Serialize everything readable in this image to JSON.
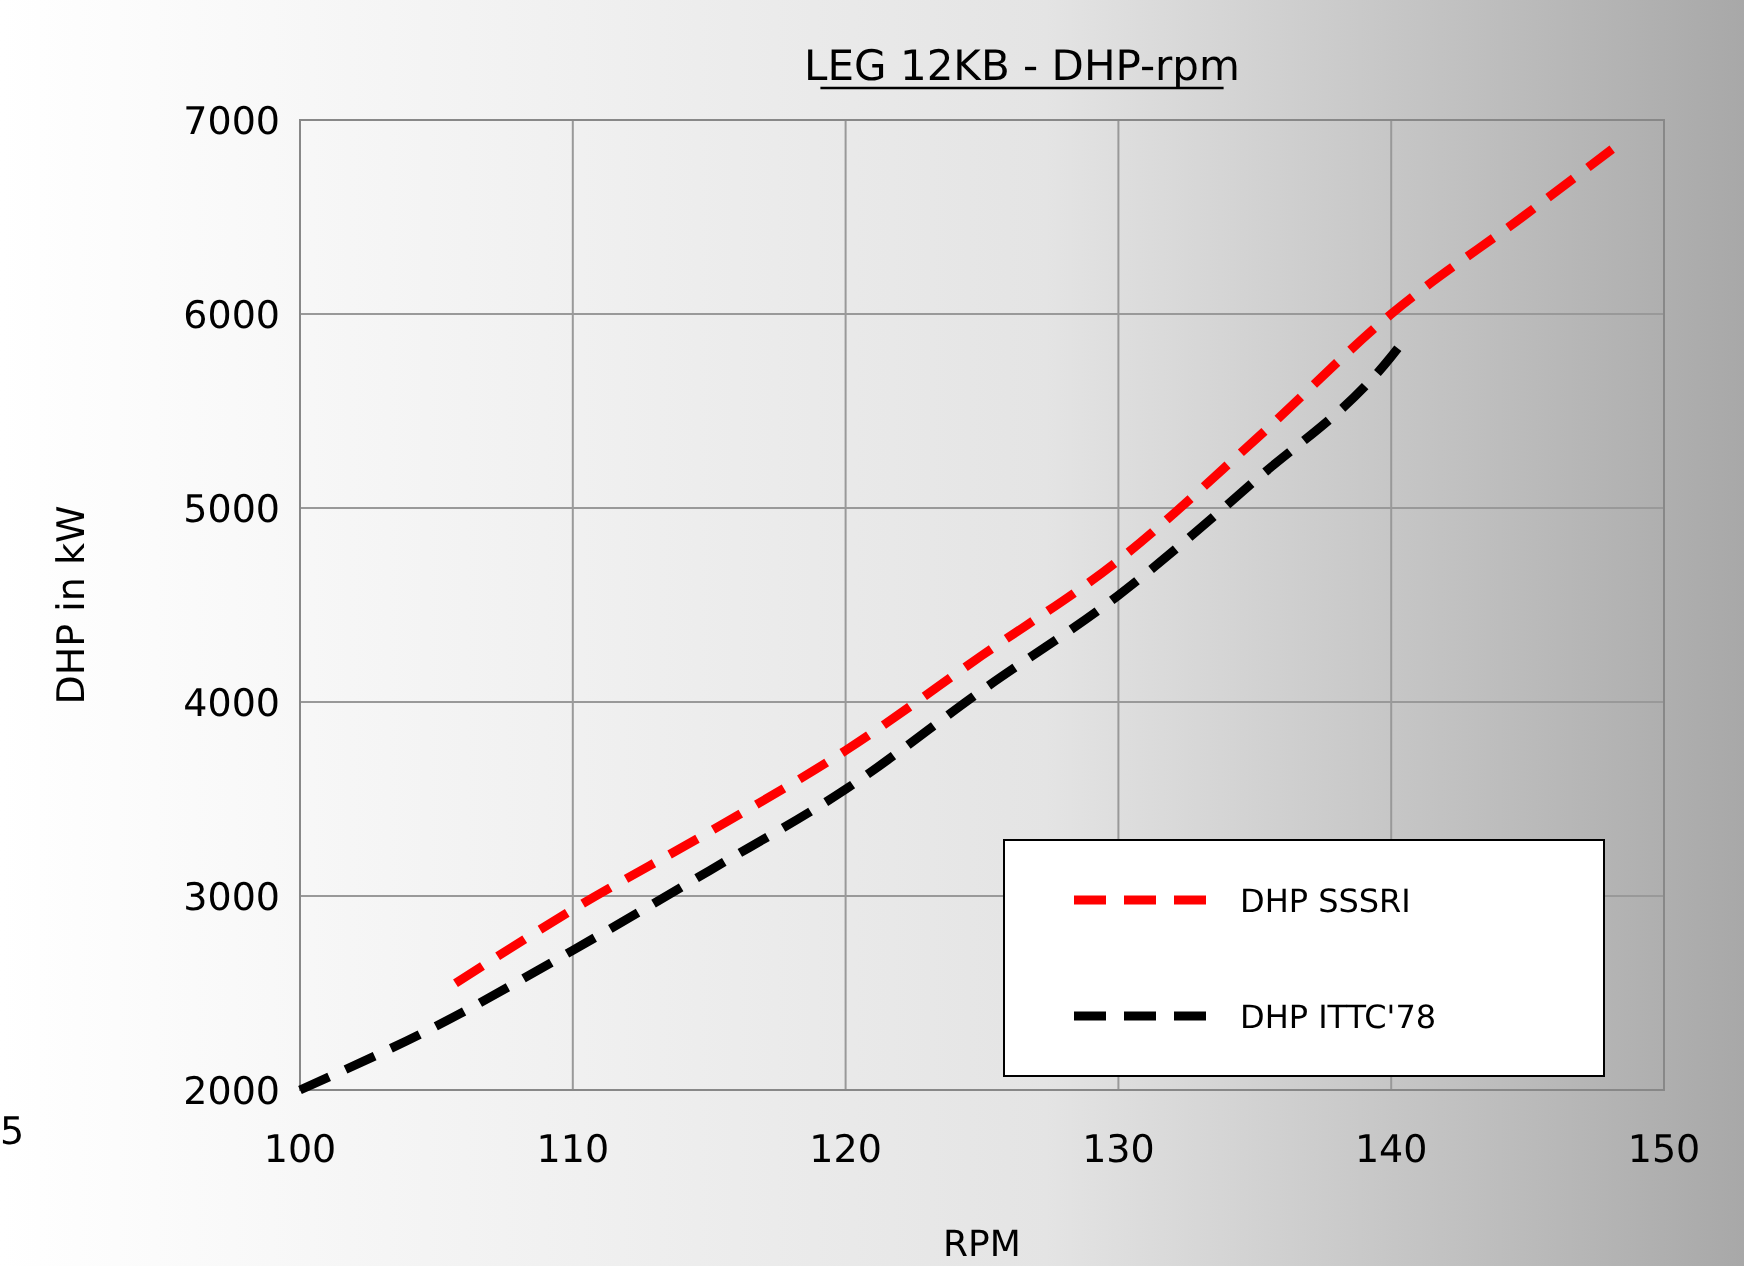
{
  "chart_data": {
    "type": "line",
    "title": "LEG 12KB - DHP-rpm",
    "xlabel": "RPM",
    "ylabel": "DHP in kW",
    "xlim": [
      100,
      150
    ],
    "xticks": [
      100,
      110,
      120,
      130,
      140,
      150
    ],
    "ylim": [
      2000,
      7000
    ],
    "yticks": [
      2000,
      3000,
      4000,
      5000,
      6000,
      7000
    ],
    "grid": true,
    "legend": "bottom right",
    "line_style": "dashed",
    "annotations": [
      "5"
    ],
    "series": [
      {
        "name": "DHP SSSRI",
        "color": "#ff0000",
        "x": [
          105.7,
          110,
          115,
          120,
          125,
          130,
          135,
          140,
          145,
          148.1
        ],
        "values": [
          2550,
          2930,
          3330,
          3750,
          4240,
          4730,
          5350,
          6000,
          6520,
          6850
        ]
      },
      {
        "name": "DHP ITTC'78",
        "color": "#000000",
        "x": [
          100,
          105,
          110,
          115,
          120,
          125,
          130,
          135,
          140,
          140.5
        ],
        "values": [
          2000,
          2330,
          2720,
          3130,
          3550,
          4060,
          4550,
          5140,
          5780,
          5870
        ]
      }
    ]
  }
}
